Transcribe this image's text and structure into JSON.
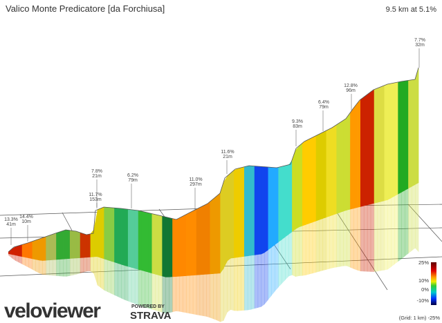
{
  "header": {
    "title": "Valico Monte Predicatore [da Forchiusa]",
    "summary": "9.5 km at 5.1%"
  },
  "annotations": [
    {
      "grade": "13.3%",
      "length": "41m"
    },
    {
      "grade": "14.4%",
      "length": "10m"
    },
    {
      "grade": "7.8%",
      "length": "21m"
    },
    {
      "grade": "11.7%",
      "length": "153m"
    },
    {
      "grade": "6.2%",
      "length": "79m"
    },
    {
      "grade": "11.0%",
      "length": "297m"
    },
    {
      "grade": "11.6%",
      "length": "21m"
    },
    {
      "grade": "9.3%",
      "length": "83m"
    },
    {
      "grade": "6.4%",
      "length": "79m"
    },
    {
      "grade": "12.8%",
      "length": "96m"
    },
    {
      "grade": "7.7%",
      "length": "32m"
    }
  ],
  "legend": {
    "labels": [
      "25%",
      "10%",
      "0%",
      "-10%",
      "-25%"
    ],
    "grid_note": "(Grid: 1 km)"
  },
  "logo": {
    "name": "veloviewer",
    "powered": "POWERED BY",
    "partner": "STRAVA"
  }
}
